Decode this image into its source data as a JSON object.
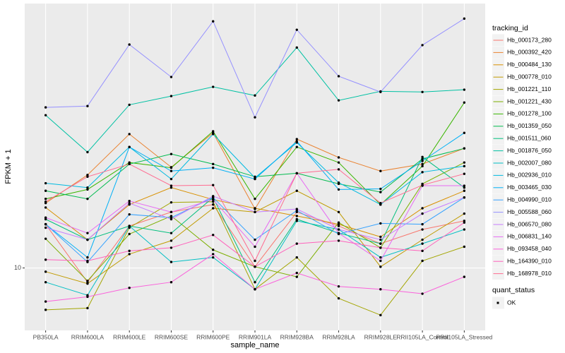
{
  "chart_data": {
    "type": "line",
    "x_label": "sample_name",
    "y_label": "FPKM + 1",
    "legend_title": "tracking_id",
    "point_legend_title": "quant_status",
    "point_legend_label": "OK",
    "point_color": "#000000",
    "log_y": true,
    "grid": true,
    "legend_position": "right",
    "ylim": [
      6,
      87
    ],
    "yticks": [
      10
    ],
    "categories": [
      "PB350LA",
      "RRIM600LA",
      "RRIM600LE",
      "RRIM600SE",
      "RRIM600PE",
      "RRIM901LA",
      "RRIM928BA",
      "RRIM928LA",
      "RRIM928LE",
      "RRII105LA_Control",
      "RRII105LA_Stressed"
    ],
    "series": [
      {
        "name": "Hb_000173_280",
        "color": "#F8766D",
        "values": [
          14.3,
          8.9,
          14.1,
          15.8,
          16.8,
          10.1,
          15.8,
          14.1,
          12.2,
          13.7,
          14.7
        ]
      },
      {
        "name": "Hb_000392_420",
        "color": "#EA8331",
        "values": [
          17.0,
          21.4,
          29.9,
          22.8,
          30.2,
          16.2,
          28.7,
          24.7,
          22.1,
          23.4,
          26.6
        ]
      },
      {
        "name": "Hb_000484_130",
        "color": "#D89000",
        "values": [
          16.4,
          12.6,
          16.8,
          19.3,
          17.5,
          16.3,
          15.3,
          14.3,
          12.9,
          16.3,
          18.8
        ]
      },
      {
        "name": "Hb_000778_010",
        "color": "#C09B00",
        "values": [
          9.7,
          8.8,
          11.2,
          12.5,
          16.3,
          15.8,
          18.8,
          15.8,
          10.1,
          12.6,
          15.6
        ]
      },
      {
        "name": "Hb_001221_110",
        "color": "#A3A500",
        "values": [
          7.1,
          7.2,
          13.9,
          17.1,
          17.2,
          8.4,
          10.9,
          7.8,
          6.8,
          10.6,
          11.9
        ]
      },
      {
        "name": "Hb_001221_430",
        "color": "#7CAE00",
        "values": [
          12.7,
          9.0,
          13.2,
          15.3,
          11.6,
          10.1,
          9.3,
          14.5,
          11.8,
          19.9,
          23.7
        ]
      },
      {
        "name": "Hb_001278_100",
        "color": "#39B600",
        "values": [
          17.6,
          19.0,
          23.7,
          22.7,
          30.6,
          17.6,
          26.9,
          23.7,
          16.8,
          23.0,
          38.7
        ]
      },
      {
        "name": "Hb_001359_050",
        "color": "#00BB4E",
        "values": [
          18.8,
          17.6,
          23.4,
          25.4,
          23.4,
          21.1,
          21.7,
          19.9,
          18.6,
          24.4,
          26.6
        ]
      },
      {
        "name": "Hb_001511_060",
        "color": "#00BF7D",
        "values": [
          14.9,
          12.6,
          14.1,
          13.3,
          17.8,
          8.9,
          14.9,
          13.3,
          12.2,
          24.8,
          19.3
        ]
      },
      {
        "name": "Hb_001876_050",
        "color": "#00C1A3",
        "values": [
          34.9,
          25.8,
          38.0,
          40.8,
          44.0,
          41.0,
          60.7,
          39.4,
          42.4,
          42.2,
          43.0
        ]
      },
      {
        "name": "Hb_002007_080",
        "color": "#00BFC4",
        "values": [
          8.9,
          8.0,
          14.1,
          10.5,
          10.9,
          8.4,
          14.7,
          13.7,
          10.9,
          12.2,
          13.7
        ]
      },
      {
        "name": "Hb_002936_010",
        "color": "#00BAE0",
        "values": [
          20.0,
          19.3,
          26.9,
          20.7,
          29.9,
          20.9,
          27.9,
          20.1,
          16.8,
          21.9,
          23.0
        ]
      },
      {
        "name": "Hb_003465_030",
        "color": "#00B0F6",
        "values": [
          14.3,
          10.9,
          26.9,
          22.1,
          22.7,
          20.7,
          28.2,
          19.0,
          19.1,
          24.0,
          30.2
        ]
      },
      {
        "name": "Hb_004990_010",
        "color": "#35A2FF",
        "values": [
          14.3,
          10.5,
          15.5,
          15.1,
          17.8,
          12.6,
          16.0,
          13.2,
          14.4,
          14.3,
          17.8
        ]
      },
      {
        "name": "Hb_005588_060",
        "color": "#9590FF",
        "values": [
          37.2,
          37.6,
          62.2,
          47.7,
          75.2,
          34.3,
          70.2,
          48.0,
          42.2,
          61.9,
          76.9
        ]
      },
      {
        "name": "Hb_006570_080",
        "color": "#C77CFF",
        "values": [
          13.9,
          12.6,
          17.0,
          14.9,
          18.0,
          15.8,
          16.2,
          13.7,
          12.6,
          15.6,
          17.8
        ]
      },
      {
        "name": "Hb_006831_140",
        "color": "#E76BF3",
        "values": [
          15.1,
          13.3,
          17.3,
          15.8,
          17.5,
          11.9,
          21.7,
          13.3,
          10.6,
          19.6,
          19.6
        ]
      },
      {
        "name": "Hb_093458_040",
        "color": "#FA62DB",
        "values": [
          7.6,
          7.9,
          8.5,
          8.9,
          11.2,
          8.4,
          9.6,
          8.6,
          8.4,
          8.1,
          9.3
        ]
      },
      {
        "name": "Hb_164390_010",
        "color": "#FF62BC",
        "values": [
          10.7,
          10.6,
          11.5,
          11.8,
          13.1,
          10.1,
          12.2,
          12.5,
          11.8,
          11.5,
          14.5
        ]
      },
      {
        "name": "Hb_168978_010",
        "color": "#FF6C91",
        "values": [
          17.2,
          21.1,
          23.4,
          19.6,
          19.7,
          10.6,
          21.7,
          22.4,
          17.0,
          19.7,
          21.6
        ]
      }
    ]
  }
}
